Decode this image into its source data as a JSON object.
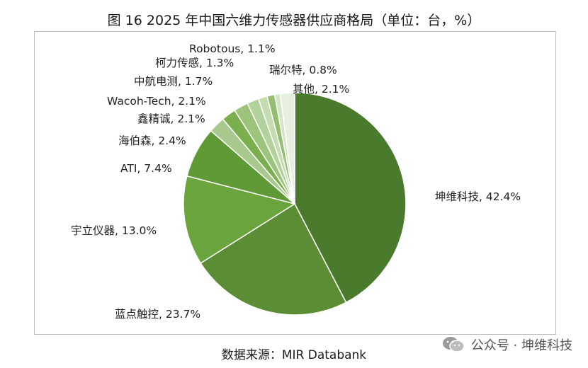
{
  "title": "图 16 2025 年中国六维力传感器供应商格局（单位：台，%）",
  "source": "数据来源：MIR Databank",
  "watermark": {
    "icon": "wechat-icon",
    "text": "公众号 · 坤维科技"
  },
  "colors": {
    "frame": "#bdbdbd",
    "label_text": "#222222"
  },
  "chart_data": {
    "type": "pie",
    "unit": "%",
    "start": "12 o'clock",
    "direction": "clockwise",
    "slices": [
      {
        "name": "坤维科技",
        "value": 42.4,
        "label": "坤维科技, 42.4%",
        "color": "#4a7a2c"
      },
      {
        "name": "蓝点触控",
        "value": 23.7,
        "label": "蓝点触控, 23.7%",
        "color": "#5a8d34"
      },
      {
        "name": "宇立仪器",
        "value": 13.0,
        "label": "宇立仪器, 13.0%",
        "color": "#6aa43d"
      },
      {
        "name": "ATI",
        "value": 7.4,
        "label": "ATI, 7.4%",
        "color": "#5f9a36"
      },
      {
        "name": "海伯森",
        "value": 2.4,
        "label": "海伯森, 2.4%",
        "color": "#a8c98d"
      },
      {
        "name": "鑫精诚",
        "value": 2.1,
        "label": "鑫精诚, 2.1%",
        "color": "#7aaf4e"
      },
      {
        "name": "Wacoh-Tech",
        "value": 2.1,
        "label": "Wacoh-Tech, 2.1%",
        "color": "#9cc47c"
      },
      {
        "name": "中航电测",
        "value": 1.7,
        "label": "中航电测, 1.7%",
        "color": "#b3d19a"
      },
      {
        "name": "柯力传感",
        "value": 1.3,
        "label": "柯力传感, 1.3%",
        "color": "#c4dcb0"
      },
      {
        "name": "Robotous",
        "value": 1.1,
        "label": "Robotous, 1.1%",
        "color": "#94bd72"
      },
      {
        "name": "瑞尔特",
        "value": 0.8,
        "label": "瑞尔特, 0.8%",
        "color": "#d3e5c5"
      },
      {
        "name": "其他",
        "value": 2.1,
        "label": "其他, 2.1%",
        "color": "#e6efe0"
      }
    ]
  }
}
